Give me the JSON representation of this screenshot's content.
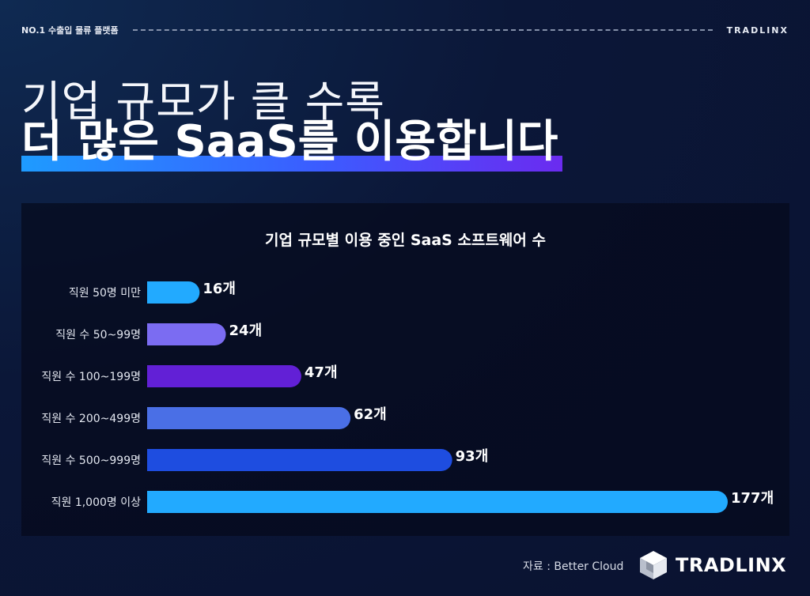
{
  "header": {
    "tagline": "NO.1 수출입 물류 플랫폼",
    "brand": "TRADLINX"
  },
  "headline": {
    "line1": "기업 규모가 클 수록",
    "line2": "더 많은 SaaS를 이용합니다"
  },
  "chart_data": {
    "type": "bar",
    "orientation": "horizontal",
    "title": "기업 규모별 이용 중인 SaaS 소프트웨어 수",
    "categories": [
      "직원 50명 미만",
      "직원 수 50~99명",
      "직원 수 100~199명",
      "직원 수 200~499명",
      "직원 수 500~999명",
      "직원 1,000명 이상"
    ],
    "values": [
      16,
      24,
      47,
      62,
      93,
      177
    ],
    "value_labels": [
      "16개",
      "24개",
      "47개",
      "62개",
      "93개",
      "177개"
    ],
    "colors": [
      "#22aaff",
      "#7b6cf2",
      "#6220d6",
      "#4a6fe6",
      "#1e4de0",
      "#22aaff"
    ],
    "xlim": [
      0,
      177
    ],
    "grid": false,
    "legend": "none"
  },
  "footer": {
    "source": "자료 : Better Cloud",
    "logo_text": "TRADLINX"
  }
}
